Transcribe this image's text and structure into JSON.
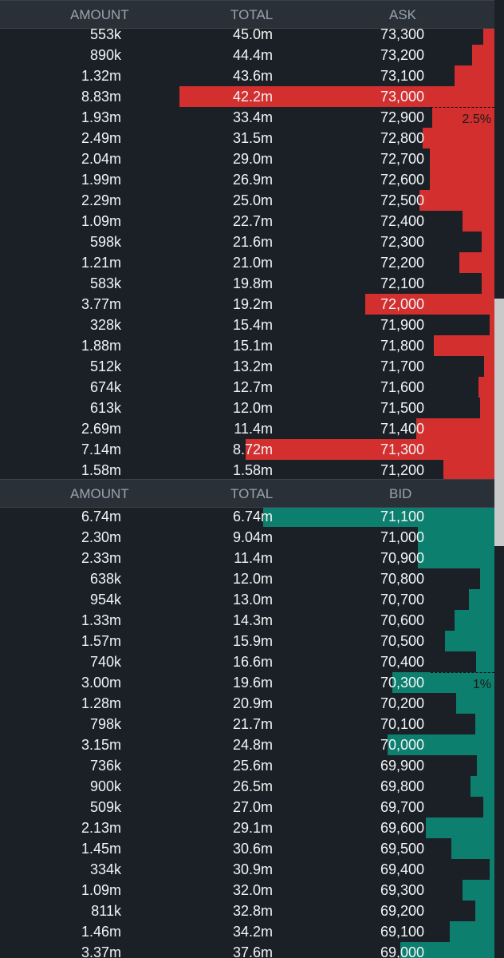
{
  "asks_header": {
    "amount": "AMOUNT",
    "total": "TOTAL",
    "price": "ASK"
  },
  "bids_header": {
    "amount": "AMOUNT",
    "total": "TOTAL",
    "price": "BID"
  },
  "colors": {
    "ask": "#d32f2f",
    "bid": "#0d7f6e",
    "background": "#1b2026"
  },
  "asks": [
    {
      "amount": "553k",
      "total": "45.0m",
      "price": "73,300",
      "depth": 0.023
    },
    {
      "amount": "890k",
      "total": "44.4m",
      "price": "73,200",
      "depth": 0.045
    },
    {
      "amount": "1.32m",
      "total": "43.6m",
      "price": "73,100",
      "depth": 0.08
    },
    {
      "amount": "8.83m",
      "total": "42.2m",
      "price": "73,000",
      "depth": 0.637
    },
    {
      "amount": "1.93m",
      "total": "33.4m",
      "price": "72,900",
      "depth": 0.126
    },
    {
      "amount": "2.49m",
      "total": "31.5m",
      "price": "72,800",
      "depth": 0.145
    },
    {
      "amount": "2.04m",
      "total": "29.0m",
      "price": "72,700",
      "depth": 0.13
    },
    {
      "amount": "1.99m",
      "total": "26.9m",
      "price": "72,600",
      "depth": 0.13
    },
    {
      "amount": "2.29m",
      "total": "25.0m",
      "price": "72,500",
      "depth": 0.152
    },
    {
      "amount": "1.09m",
      "total": "22.7m",
      "price": "72,400",
      "depth": 0.065
    },
    {
      "amount": "598k",
      "total": "21.6m",
      "price": "72,300",
      "depth": 0.026
    },
    {
      "amount": "1.21m",
      "total": "21.0m",
      "price": "72,200",
      "depth": 0.071
    },
    {
      "amount": "583k",
      "total": "19.8m",
      "price": "72,100",
      "depth": 0.026
    },
    {
      "amount": "3.77m",
      "total": "19.2m",
      "price": "72,000",
      "depth": 0.261
    },
    {
      "amount": "328k",
      "total": "15.4m",
      "price": "71,900",
      "depth": 0.01
    },
    {
      "amount": "1.88m",
      "total": "15.1m",
      "price": "71,800",
      "depth": 0.123
    },
    {
      "amount": "512k",
      "total": "13.2m",
      "price": "71,700",
      "depth": 0.021
    },
    {
      "amount": "674k",
      "total": "12.7m",
      "price": "71,600",
      "depth": 0.032
    },
    {
      "amount": "613k",
      "total": "12.0m",
      "price": "71,500",
      "depth": 0.029
    },
    {
      "amount": "2.69m",
      "total": "11.4m",
      "price": "71,400",
      "depth": 0.158
    },
    {
      "amount": "7.14m",
      "total": "8.72m",
      "price": "71,300",
      "depth": 0.504
    },
    {
      "amount": "1.58m",
      "total": "1.58m",
      "price": "71,200",
      "depth": 0.103
    }
  ],
  "bids": [
    {
      "amount": "6.74m",
      "total": "6.74m",
      "price": "71,100",
      "depth": 0.468
    },
    {
      "amount": "2.30m",
      "total": "9.04m",
      "price": "71,000",
      "depth": 0.155
    },
    {
      "amount": "2.33m",
      "total": "11.4m",
      "price": "70,900",
      "depth": 0.155
    },
    {
      "amount": "638k",
      "total": "12.0m",
      "price": "70,800",
      "depth": 0.029
    },
    {
      "amount": "954k",
      "total": "13.0m",
      "price": "70,700",
      "depth": 0.052
    },
    {
      "amount": "1.33m",
      "total": "14.3m",
      "price": "70,600",
      "depth": 0.081
    },
    {
      "amount": "1.57m",
      "total": "15.9m",
      "price": "70,500",
      "depth": 0.1
    },
    {
      "amount": "740k",
      "total": "16.6m",
      "price": "70,400",
      "depth": 0.037
    },
    {
      "amount": "3.00m",
      "total": "19.6m",
      "price": "70,300",
      "depth": 0.206
    },
    {
      "amount": "1.28m",
      "total": "20.9m",
      "price": "70,200",
      "depth": 0.077
    },
    {
      "amount": "798k",
      "total": "21.7m",
      "price": "70,100",
      "depth": 0.039
    },
    {
      "amount": "3.15m",
      "total": "24.8m",
      "price": "70,000",
      "depth": 0.216
    },
    {
      "amount": "736k",
      "total": "25.6m",
      "price": "69,900",
      "depth": 0.035
    },
    {
      "amount": "900k",
      "total": "26.5m",
      "price": "69,800",
      "depth": 0.048
    },
    {
      "amount": "509k",
      "total": "27.0m",
      "price": "69,700",
      "depth": 0.023
    },
    {
      "amount": "2.13m",
      "total": "29.1m",
      "price": "69,600",
      "depth": 0.139
    },
    {
      "amount": "1.45m",
      "total": "30.6m",
      "price": "69,500",
      "depth": 0.087
    },
    {
      "amount": "334k",
      "total": "30.9m",
      "price": "69,400",
      "depth": 0.01
    },
    {
      "amount": "1.09m",
      "total": "32.0m",
      "price": "69,300",
      "depth": 0.065
    },
    {
      "amount": "811k",
      "total": "32.8m",
      "price": "69,200",
      "depth": 0.039
    },
    {
      "amount": "1.46m",
      "total": "34.2m",
      "price": "69,100",
      "depth": 0.09
    },
    {
      "amount": "3.37m",
      "total": "37.6m",
      "price": "69,000",
      "depth": 0.19
    }
  ],
  "ask_marker": {
    "label": "2.5%",
    "after_row": 3
  },
  "bid_marker": {
    "label": "1%",
    "after_row": 7
  },
  "scrollbar": {
    "position": 0.29,
    "visible": 0.5
  }
}
